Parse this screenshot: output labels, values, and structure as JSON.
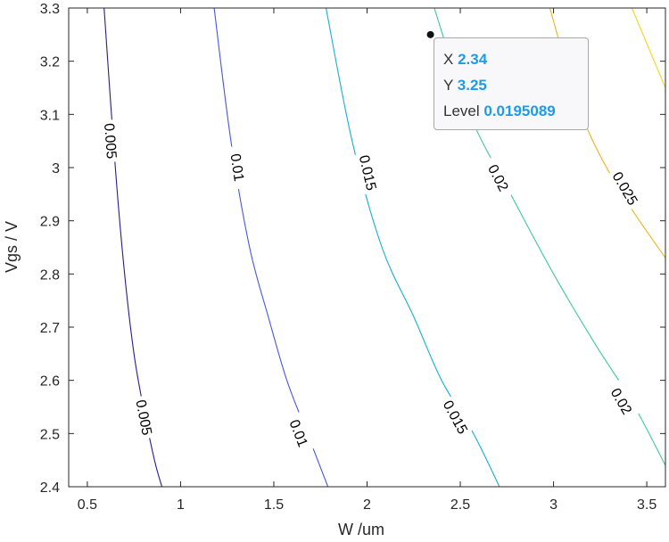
{
  "chart_data": {
    "type": "contour",
    "xlabel": "W /um",
    "ylabel": "Vgs / V",
    "xlim": [
      0.4,
      3.6
    ],
    "ylim": [
      2.4,
      3.3
    ],
    "xticks": [
      "0.5",
      "1",
      "1.5",
      "2",
      "2.5",
      "3",
      "3.5"
    ],
    "yticks": [
      "2.4",
      "2.5",
      "2.6",
      "2.7",
      "2.8",
      "2.9",
      "3",
      "3.1",
      "3.2",
      "3.3"
    ],
    "grid": false,
    "levels": [
      {
        "level": 0.005,
        "color": "#2b1a8e",
        "points": [
          [
            0.59,
            3.3
          ],
          [
            0.65,
            3.0
          ],
          [
            0.7,
            2.8
          ],
          [
            0.75,
            2.65
          ],
          [
            0.8,
            2.55
          ],
          [
            0.86,
            2.45
          ],
          [
            0.9,
            2.4
          ]
        ],
        "labels": [
          {
            "text": "0.005",
            "x": 0.62,
            "y": 3.05
          },
          {
            "text": "0.005",
            "x": 0.8,
            "y": 2.53
          }
        ]
      },
      {
        "level": 0.01,
        "color": "#4657e0",
        "points": [
          [
            1.18,
            3.3
          ],
          [
            1.27,
            3.05
          ],
          [
            1.37,
            2.85
          ],
          [
            1.47,
            2.72
          ],
          [
            1.57,
            2.6
          ],
          [
            1.68,
            2.5
          ],
          [
            1.79,
            2.4
          ]
        ],
        "labels": [
          {
            "text": "0.01",
            "x": 1.3,
            "y": 3.0
          },
          {
            "text": "0.01",
            "x": 1.63,
            "y": 2.5
          }
        ]
      },
      {
        "level": 0.015,
        "color": "#17aece",
        "points": [
          [
            1.78,
            3.3
          ],
          [
            1.92,
            3.05
          ],
          [
            2.08,
            2.85
          ],
          [
            2.25,
            2.72
          ],
          [
            2.4,
            2.6
          ],
          [
            2.57,
            2.5
          ],
          [
            2.71,
            2.4
          ]
        ],
        "labels": [
          {
            "text": "0.015",
            "x": 2.0,
            "y": 2.99
          },
          {
            "text": "0.015",
            "x": 2.47,
            "y": 2.53
          }
        ]
      },
      {
        "level": 0.02,
        "color": "#3cc89e",
        "points": [
          [
            2.36,
            3.3
          ],
          [
            2.55,
            3.1
          ],
          [
            2.77,
            2.95
          ],
          [
            3.0,
            2.8
          ],
          [
            3.22,
            2.67
          ],
          [
            3.42,
            2.56
          ],
          [
            3.6,
            2.44
          ]
        ],
        "labels": [
          {
            "text": "0.02",
            "x": 2.7,
            "y": 2.98
          },
          {
            "text": "0.02",
            "x": 3.36,
            "y": 2.56
          }
        ]
      },
      {
        "level": 0.025,
        "color": "#e8b51e",
        "points": [
          [
            2.98,
            3.3
          ],
          [
            3.15,
            3.1
          ],
          [
            3.35,
            2.96
          ],
          [
            3.6,
            2.83
          ]
        ],
        "labels": [
          {
            "text": "0.025",
            "x": 3.38,
            "y": 2.96
          }
        ]
      },
      {
        "level": 0.03,
        "color": "#f2d81a",
        "points": [
          [
            3.42,
            3.3
          ],
          [
            3.6,
            3.15
          ]
        ],
        "labels": []
      }
    ],
    "datatip": {
      "x": 2.34,
      "y": 3.25
    }
  },
  "datatip": {
    "x_label": "X",
    "x_value": "2.34",
    "y_label": "Y",
    "y_value": "3.25",
    "level_label": "Level",
    "level_value": "0.0195089"
  }
}
